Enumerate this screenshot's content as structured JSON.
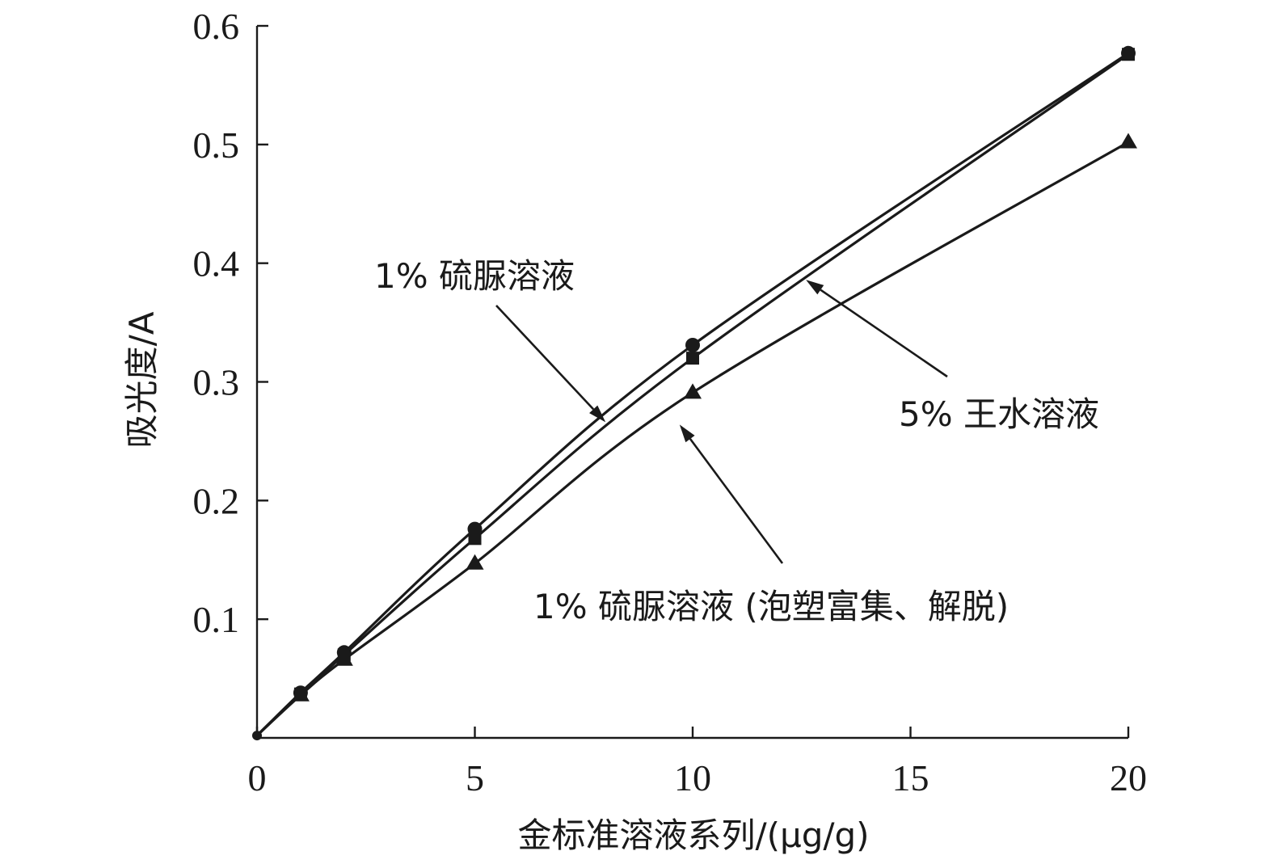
{
  "chart_data": {
    "type": "line",
    "title": "",
    "xlabel": "金标准溶液系列/(μg/g)",
    "ylabel": "吸光度/A",
    "xlim": [
      0,
      20
    ],
    "ylim": [
      0,
      0.6
    ],
    "xticks": [
      0,
      5,
      10,
      15,
      20
    ],
    "yticks": [
      0.1,
      0.2,
      0.3,
      0.4,
      0.5,
      0.6
    ],
    "grid": false,
    "legend": "none",
    "x": [
      0,
      1,
      2,
      5,
      10,
      20
    ],
    "series": [
      {
        "name": "1% 硫脲溶液",
        "marker": "circle",
        "values": [
          0.002,
          0.038,
          0.072,
          0.176,
          0.331,
          0.577
        ]
      },
      {
        "name": "5% 王水溶液",
        "marker": "square",
        "values": [
          0.002,
          0.037,
          0.07,
          0.168,
          0.32,
          0.576
        ]
      },
      {
        "name": "1% 硫脲溶液 (泡塑富集、解脱)",
        "marker": "triangle",
        "values": [
          0.002,
          0.036,
          0.066,
          0.147,
          0.291,
          0.502
        ]
      }
    ],
    "annotations": [
      {
        "text": "1% 硫脲溶液",
        "series": 0,
        "arrow_to_x": 8.0,
        "arrow_to_y": 0.266
      },
      {
        "text": "5% 王水溶液",
        "series": 1,
        "arrow_to_x": 12.6,
        "arrow_to_y": 0.386
      },
      {
        "text": "1% 硫脲溶液 (泡塑富集、解脱)",
        "series": 2,
        "arrow_to_x": 9.7,
        "arrow_to_y": 0.264
      }
    ]
  }
}
